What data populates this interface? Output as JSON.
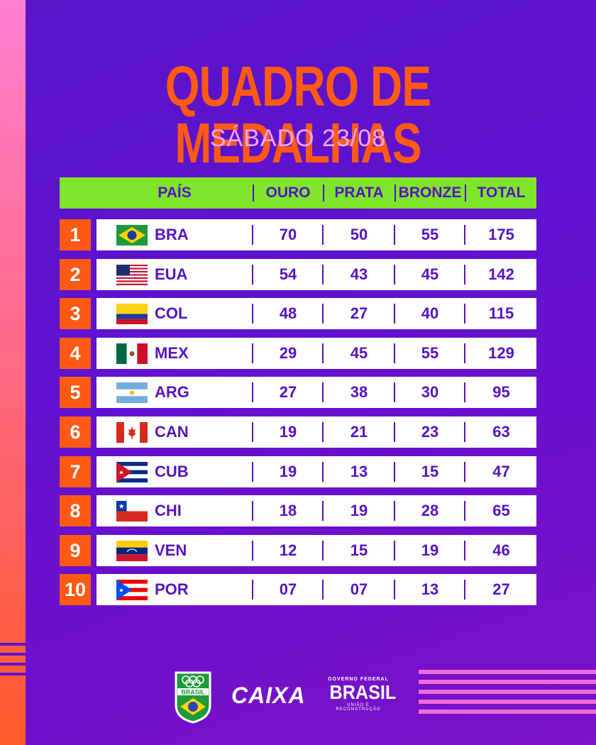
{
  "title": "QUADRO DE MEDALHAS",
  "subtitle": "SÁBADO 23/08",
  "header": {
    "pais": "PAÍS",
    "ouro": "OURO",
    "prata": "PRATA",
    "bronze": "BRONZE",
    "total": "TOTAL"
  },
  "rows": [
    {
      "rank": "1",
      "code": "BRA",
      "ouro": "70",
      "prata": "50",
      "bronze": "55",
      "total": "175",
      "flag": "brazil-flag"
    },
    {
      "rank": "2",
      "code": "EUA",
      "ouro": "54",
      "prata": "43",
      "bronze": "45",
      "total": "142",
      "flag": "usa-flag"
    },
    {
      "rank": "3",
      "code": "COL",
      "ouro": "48",
      "prata": "27",
      "bronze": "40",
      "total": "115",
      "flag": "colombia-flag"
    },
    {
      "rank": "4",
      "code": "MEX",
      "ouro": "29",
      "prata": "45",
      "bronze": "55",
      "total": "129",
      "flag": "mexico-flag"
    },
    {
      "rank": "5",
      "code": "ARG",
      "ouro": "27",
      "prata": "38",
      "bronze": "30",
      "total": "95",
      "flag": "argentina-flag"
    },
    {
      "rank": "6",
      "code": "CAN",
      "ouro": "19",
      "prata": "21",
      "bronze": "23",
      "total": "63",
      "flag": "canada-flag"
    },
    {
      "rank": "7",
      "code": "CUB",
      "ouro": "19",
      "prata": "13",
      "bronze": "15",
      "total": "47",
      "flag": "cuba-flag"
    },
    {
      "rank": "8",
      "code": "CHI",
      "ouro": "18",
      "prata": "19",
      "bronze": "28",
      "total": "65",
      "flag": "chile-flag"
    },
    {
      "rank": "9",
      "code": "VEN",
      "ouro": "12",
      "prata": "15",
      "bronze": "19",
      "total": "46",
      "flag": "venezuela-flag"
    },
    {
      "rank": "10",
      "code": "POR",
      "ouro": "07",
      "prata": "07",
      "bronze": "13",
      "total": "27",
      "flag": "puerto-rico-flag"
    }
  ],
  "logos": {
    "brasil_badge": "BRASIL",
    "caixa": "CAIXA",
    "gov_top": "GOVERNO FEDERAL",
    "gov_main": "BRASIL",
    "gov_bottom": "UNIÃO E RECONSTRUÇÃO"
  },
  "colors": {
    "accent": "#ff5a14",
    "header": "#7ee52a",
    "text": "#5612c4",
    "subtitle": "#f3a6ff"
  }
}
